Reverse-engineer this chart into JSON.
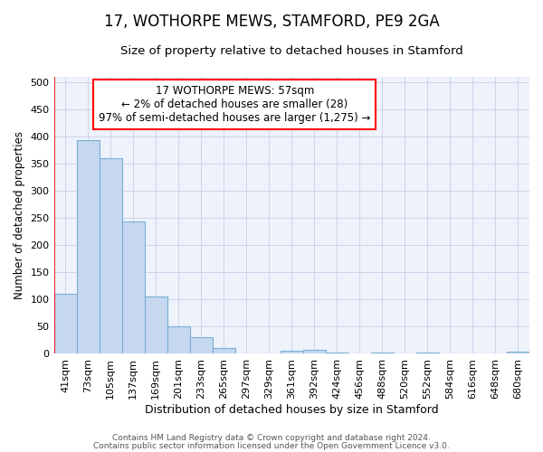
{
  "title": "17, WOTHORPE MEWS, STAMFORD, PE9 2GA",
  "subtitle": "Size of property relative to detached houses in Stamford",
  "xlabel": "Distribution of detached houses by size in Stamford",
  "ylabel": "Number of detached properties",
  "bar_labels": [
    "41sqm",
    "73sqm",
    "105sqm",
    "137sqm",
    "169sqm",
    "201sqm",
    "233sqm",
    "265sqm",
    "297sqm",
    "329sqm",
    "361sqm",
    "392sqm",
    "424sqm",
    "456sqm",
    "488sqm",
    "520sqm",
    "552sqm",
    "584sqm",
    "616sqm",
    "648sqm",
    "680sqm"
  ],
  "bar_values": [
    110,
    393,
    360,
    243,
    105,
    50,
    30,
    10,
    0,
    0,
    6,
    7,
    3,
    0,
    3,
    0,
    3,
    0,
    0,
    0,
    4
  ],
  "bar_color": "#c5d8f0",
  "bar_edge_color": "#7aafd4",
  "ylim": [
    0,
    510
  ],
  "yticks": [
    0,
    50,
    100,
    150,
    200,
    250,
    300,
    350,
    400,
    450,
    500
  ],
  "annotation_line1": "17 WOTHORPE MEWS: 57sqm",
  "annotation_line2": "← 2% of detached houses are smaller (28)",
  "annotation_line3": "97% of semi-detached houses are larger (1,275) →",
  "footer_line1": "Contains HM Land Registry data © Crown copyright and database right 2024.",
  "footer_line2": "Contains public sector information licensed under the Open Government Licence v3.0.",
  "bg_color": "#eef2fb",
  "grid_color": "#c8d0e8",
  "title_fontsize": 12,
  "subtitle_fontsize": 9.5,
  "xlabel_fontsize": 9,
  "ylabel_fontsize": 8.5,
  "tick_fontsize": 8,
  "annotation_fontsize": 8.5,
  "footer_fontsize": 6.5
}
